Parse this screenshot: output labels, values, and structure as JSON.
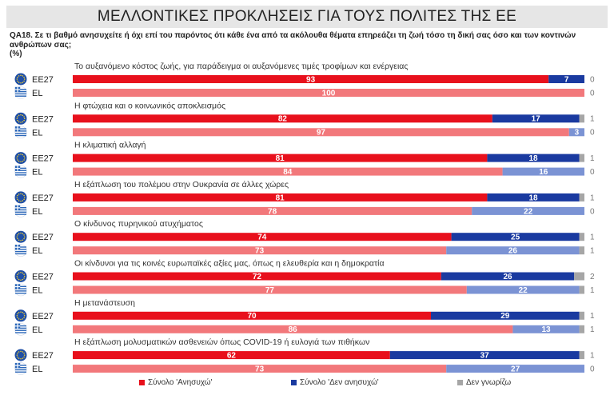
{
  "page": {
    "title": "ΜΕΛΛΟΝΤΙΚΕΣ ΠΡΟΚΛΗΣΕΙΣ ΓΙΑ ΤΟΥΣ ΠΟΛΙΤΕΣ ΤΗΣ ΕΕ",
    "question": "QA18. Σε τι βαθμό ανησυχείτε ή όχι επί του παρόντος ότι κάθε ένα από τα ακόλουθα θέματα επηρεάζει τη ζωή τόσο τη δική σας όσο και των κοντινών ανθρώπων σας;",
    "unit": "(%)"
  },
  "colors": {
    "eu_concerned": "#e8101c",
    "el_concerned": "#f2787b",
    "eu_not_concerned": "#1a3aa0",
    "el_not_concerned": "#7b93d4",
    "dont_know": "#a6a6a6",
    "eu_flag": "#1f4fa6",
    "gr_flag": "#2a66b8"
  },
  "chart_data": {
    "type": "bar",
    "orientation": "horizontal",
    "stacked": true,
    "xlim": [
      0,
      100
    ],
    "groups": [
      "EE27",
      "EL"
    ],
    "series": [
      {
        "name": "Σύνολο 'Ανησυχώ'"
      },
      {
        "name": "Σύνολο 'Δεν ανησυχώ'"
      },
      {
        "name": "Δεν γνωρίζω"
      }
    ],
    "categories": [
      {
        "label": "Το αυξανόμενο κόστος ζωής, για παράδειγμα οι αυξανόμενες τιμές τροφίμων και ενέργειας",
        "EE27": [
          93,
          7,
          0
        ],
        "EL": [
          100,
          0,
          0
        ]
      },
      {
        "label": "Η φτώχεια και ο κοινωνικός αποκλεισμός",
        "EE27": [
          82,
          17,
          1
        ],
        "EL": [
          97,
          3,
          0
        ]
      },
      {
        "label": "Η κλιματική αλλαγή",
        "EE27": [
          81,
          18,
          1
        ],
        "EL": [
          84,
          16,
          0
        ]
      },
      {
        "label": "Η εξάπλωση του πολέμου στην Ουκρανία σε άλλες χώρες",
        "EE27": [
          81,
          18,
          1
        ],
        "EL": [
          78,
          22,
          0
        ]
      },
      {
        "label": "Ο κίνδυνος πυρηνικού ατυχήματος",
        "EE27": [
          74,
          25,
          1
        ],
        "EL": [
          73,
          26,
          1
        ]
      },
      {
        "label": "Οι κίνδυνοι για τις κοινές ευρωπαϊκές αξίες μας, όπως η ελευθερία και η δημοκρατία",
        "EE27": [
          72,
          26,
          2
        ],
        "EL": [
          77,
          22,
          1
        ]
      },
      {
        "label": "Η μετανάστευση",
        "EE27": [
          70,
          29,
          1
        ],
        "EL": [
          86,
          13,
          1
        ]
      },
      {
        "label": "Η εξάπλωση μολυσματικών ασθενειών όπως COVID-19 ή ευλογιά των πιθήκων",
        "EE27": [
          62,
          37,
          1
        ],
        "EL": [
          73,
          27,
          0
        ]
      }
    ]
  },
  "legend": {
    "concerned": "Σύνολο 'Ανησυχώ'",
    "not_concerned": "Σύνολο 'Δεν ανησυχώ'",
    "dont_know": "Δεν γνωρίζω"
  }
}
